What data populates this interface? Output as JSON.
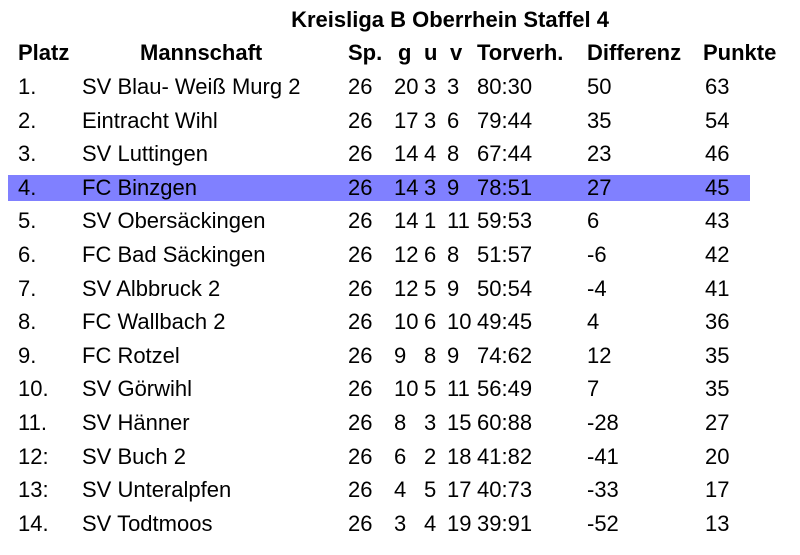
{
  "title": "Kreisliga B Oberrhein Staffel 4",
  "headers": {
    "platz": "Platz",
    "mannschaft": "Mannschaft",
    "sp": "Sp.",
    "g": "g",
    "u": "u",
    "v": "v",
    "torverh": "Torverh.",
    "differenz": "Differenz",
    "punkte": "Punkte"
  },
  "highlight_color": "#8080ff",
  "rows": [
    {
      "platz": "1.",
      "mannschaft": "SV Blau- Weiß Murg 2",
      "sp": "26",
      "g": "20",
      "u": "3",
      "v": "3",
      "torverh": "80:30",
      "differenz": "50",
      "punkte": "63",
      "highlight": false
    },
    {
      "platz": "2.",
      "mannschaft": "Eintracht Wihl",
      "sp": "26",
      "g": "17",
      "u": "3",
      "v": "6",
      "torverh": "79:44",
      "differenz": "35",
      "punkte": "54",
      "highlight": false
    },
    {
      "platz": "3.",
      "mannschaft": "SV Luttingen",
      "sp": "26",
      "g": "14",
      "u": "4",
      "v": "8",
      "torverh": "67:44",
      "differenz": "23",
      "punkte": "46",
      "highlight": false
    },
    {
      "platz": "4.",
      "mannschaft": "FC Binzgen",
      "sp": "26",
      "g": "14",
      "u": "3",
      "v": "9",
      "torverh": "78:51",
      "differenz": "27",
      "punkte": "45",
      "highlight": true
    },
    {
      "platz": "5.",
      "mannschaft": "SV Obersäckingen",
      "sp": "26",
      "g": "14",
      "u": "1",
      "v": "11",
      "torverh": "59:53",
      "differenz": "6",
      "punkte": "43",
      "highlight": false
    },
    {
      "platz": "6.",
      "mannschaft": "FC Bad Säckingen",
      "sp": "26",
      "g": "12",
      "u": "6",
      "v": "8",
      "torverh": "51:57",
      "differenz": "-6",
      "punkte": "42",
      "highlight": false
    },
    {
      "platz": "7.",
      "mannschaft": "SV Albbruck 2",
      "sp": "26",
      "g": "12",
      "u": "5",
      "v": "9",
      "torverh": "50:54",
      "differenz": "-4",
      "punkte": "41",
      "highlight": false
    },
    {
      "platz": "8.",
      "mannschaft": "FC Wallbach 2",
      "sp": "26",
      "g": "10",
      "u": "6",
      "v": "10",
      "torverh": "49:45",
      "differenz": "4",
      "punkte": "36",
      "highlight": false
    },
    {
      "platz": "9.",
      "mannschaft": "FC Rotzel",
      "sp": "26",
      "g": "9",
      "u": "8",
      "v": "9",
      "torverh": "74:62",
      "differenz": "12",
      "punkte": "35",
      "highlight": false
    },
    {
      "platz": "10.",
      "mannschaft": "SV Görwihl",
      "sp": "26",
      "g": "10",
      "u": "5",
      "v": "11",
      "torverh": "56:49",
      "differenz": "7",
      "punkte": "35",
      "highlight": false
    },
    {
      "platz": "11.",
      "mannschaft": "SV Hänner",
      "sp": "26",
      "g": "8",
      "u": "3",
      "v": "15",
      "torverh": "60:88",
      "differenz": "-28",
      "punkte": "27",
      "highlight": false
    },
    {
      "platz": "12:",
      "mannschaft": "SV Buch 2",
      "sp": "26",
      "g": "6",
      "u": "2",
      "v": "18",
      "torverh": "41:82",
      "differenz": "-41",
      "punkte": "20",
      "highlight": false
    },
    {
      "platz": "13:",
      "mannschaft": "SV Unteralpfen",
      "sp": "26",
      "g": "4",
      "u": "5",
      "v": "17",
      "torverh": "40:73",
      "differenz": "-33",
      "punkte": "17",
      "highlight": false
    },
    {
      "platz": "14.",
      "mannschaft": "SV Todtmoos",
      "sp": "26",
      "g": "3",
      "u": "4",
      "v": "19",
      "torverh": "39:91",
      "differenz": "-52",
      "punkte": "13",
      "highlight": false
    }
  ]
}
